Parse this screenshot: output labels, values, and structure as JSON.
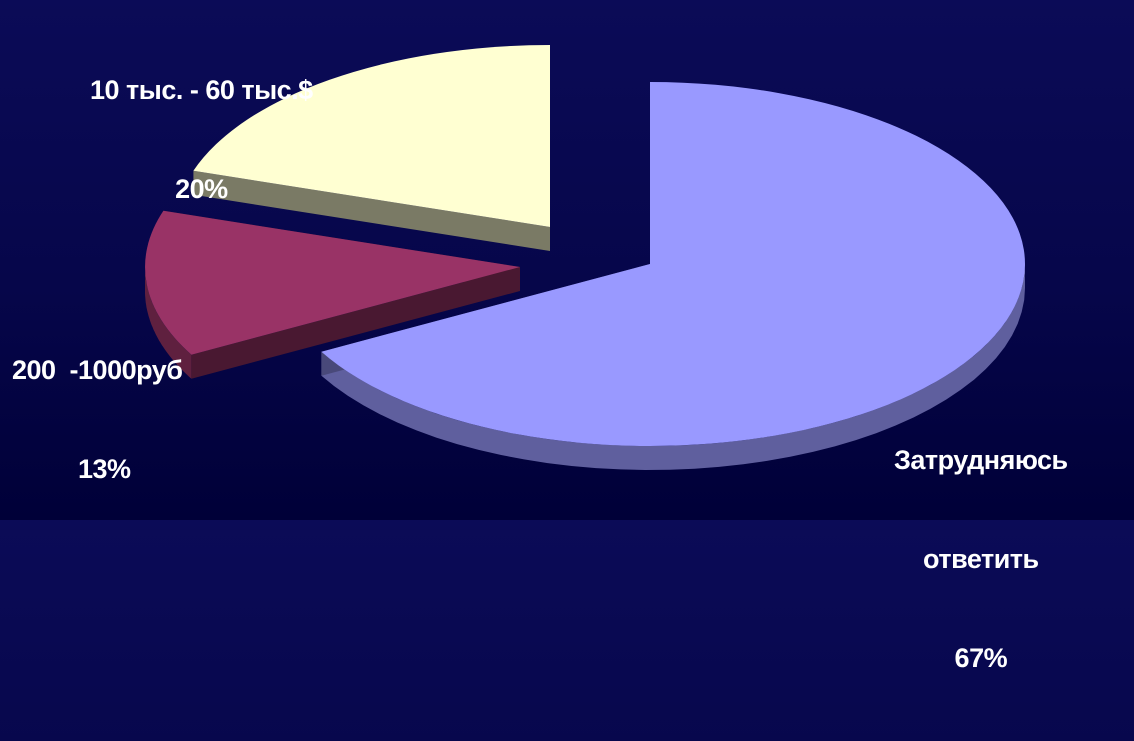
{
  "chart_data": {
    "type": "pie",
    "style": "3d-exploded",
    "categories": [
      "10 тыс. - 60 тыс.$",
      "200  -1000руб",
      "Затрудняюсь ответить"
    ],
    "values": [
      20,
      13,
      67
    ],
    "unit": "%",
    "colors": [
      "#ffffd2",
      "#993366",
      "#9999ff"
    ],
    "labels": [
      {
        "lines": [
          "10 тыс. - 60 тыс.$",
          "20%"
        ]
      },
      {
        "lines": [
          "200  -1000руб",
          "13%"
        ]
      },
      {
        "lines": [
          "Затрудняюсь",
          "ответить",
          "67%"
        ]
      }
    ]
  }
}
